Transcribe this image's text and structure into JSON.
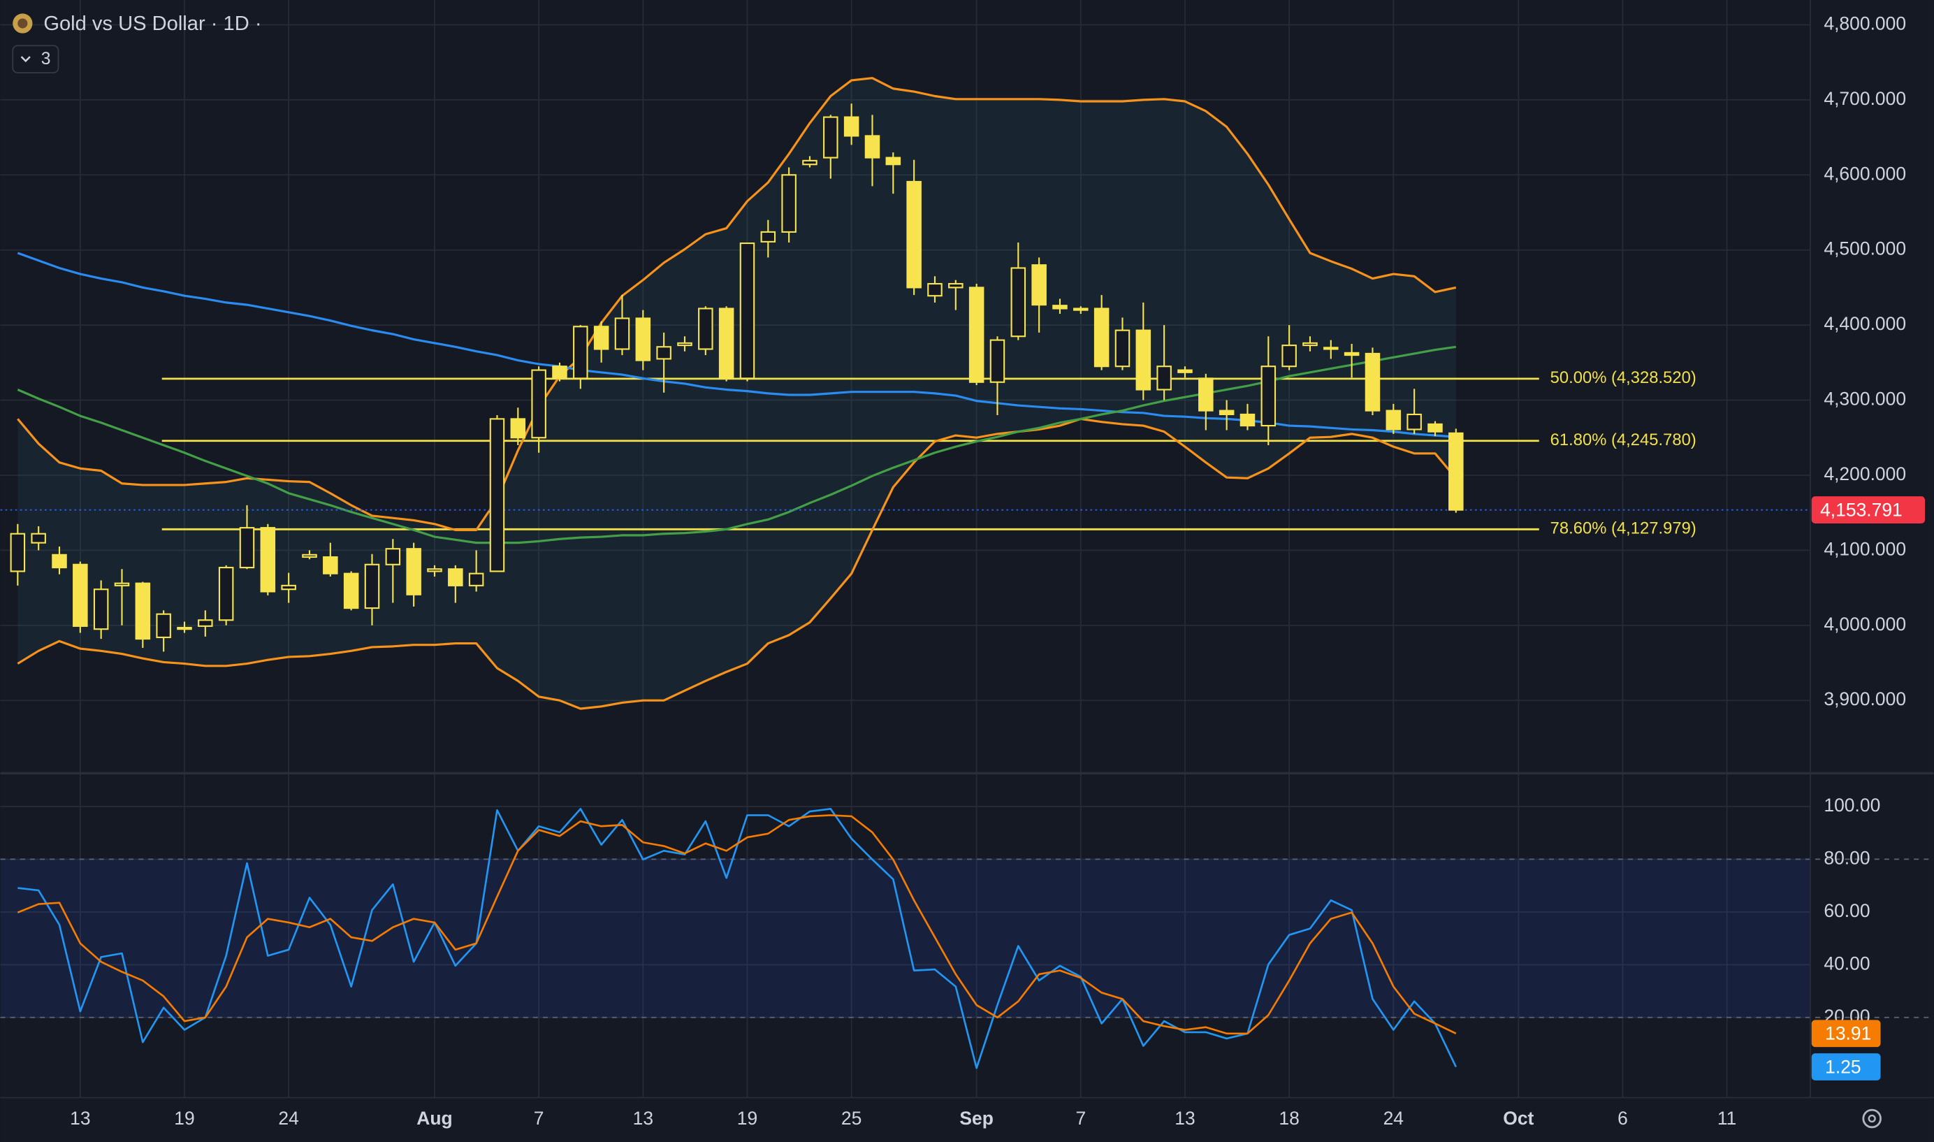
{
  "chart_data": [
    {
      "type": "candlestick",
      "title": "Gold vs US Dollar · 1D ·",
      "indicators": 3,
      "up_color": "#151924",
      "down_color": "#f7e34e",
      "wick_color": "#f7e34e",
      "grid": true,
      "band_color": "rgba(60,150,170,0.09)",
      "open": [
        4072,
        4110,
        4094,
        4081,
        3995,
        4053,
        4056,
        3984,
        3997,
        3999,
        4007,
        4077,
        4130,
        4048,
        4091,
        4091,
        4069,
        4023,
        4081,
        4102,
        4072,
        4075,
        4053,
        4072,
        4275,
        4250,
        4345,
        4329,
        4398,
        4368,
        4409,
        4355,
        4373,
        4368,
        4422,
        4329,
        4511,
        4524,
        4614,
        4623,
        4677,
        4652,
        4623,
        4591,
        4439,
        4450,
        4450,
        4324,
        4385,
        4480,
        4426,
        4422,
        4422,
        4345,
        4393,
        4314,
        4340,
        4329,
        4286,
        4281,
        4266,
        4345,
        4373,
        4370,
        4363,
        4362,
        4286,
        4261,
        4268,
        4256
      ],
      "high": [
        4135,
        4132,
        4105,
        4085,
        4060,
        4075,
        4058,
        4020,
        4005,
        4020,
        4080,
        4160,
        4135,
        4070,
        4100,
        4110,
        4072,
        4095,
        4115,
        4110,
        4080,
        4080,
        4100,
        4280,
        4290,
        4345,
        4350,
        4400,
        4405,
        4440,
        4420,
        4390,
        4385,
        4425,
        4425,
        4510,
        4540,
        4610,
        4625,
        4680,
        4695,
        4680,
        4630,
        4620,
        4465,
        4460,
        4455,
        4385,
        4510,
        4490,
        4435,
        4425,
        4440,
        4410,
        4430,
        4400,
        4345,
        4335,
        4300,
        4295,
        4385,
        4400,
        4385,
        4380,
        4375,
        4370,
        4295,
        4315,
        4272,
        4262
      ],
      "low": [
        4053,
        4100,
        4068,
        3990,
        3982,
        4000,
        3970,
        3965,
        3990,
        3985,
        4000,
        4075,
        4040,
        4030,
        4088,
        4065,
        4020,
        4000,
        4030,
        4025,
        4065,
        4030,
        4045,
        4072,
        4240,
        4230,
        4325,
        4315,
        4350,
        4360,
        4340,
        4310,
        4365,
        4360,
        4325,
        4325,
        4490,
        4510,
        4610,
        4595,
        4640,
        4585,
        4575,
        4440,
        4430,
        4420,
        4320,
        4280,
        4380,
        4390,
        4415,
        4415,
        4340,
        4340,
        4300,
        4300,
        4330,
        4260,
        4260,
        4260,
        4240,
        4340,
        4365,
        4355,
        4330,
        4280,
        4255,
        4255,
        4252,
        4150
      ],
      "close": [
        4122,
        4122,
        4077,
        3999,
        4048,
        4056,
        3982,
        4015,
        3995,
        4007,
        4077,
        4130,
        4045,
        4053,
        4094,
        4069,
        4023,
        4081,
        4102,
        4041,
        4075,
        4053,
        4069,
        4275,
        4250,
        4340,
        4329,
        4398,
        4368,
        4409,
        4353,
        4371,
        4376,
        4422,
        4329,
        4509,
        4524,
        4600,
        4619,
        4677,
        4652,
        4623,
        4614,
        4450,
        4455,
        4455,
        4324,
        4380,
        4476,
        4427,
        4422,
        4420,
        4345,
        4393,
        4314,
        4345,
        4337,
        4286,
        4281,
        4266,
        4345,
        4373,
        4376,
        4368,
        4360,
        4286,
        4261,
        4281,
        4258,
        4153.791
      ],
      "lines": [
        {
          "color": "#f7931a",
          "values": [
            4275,
            4242,
            4217,
            4209,
            4206,
            4189,
            4187,
            4187,
            4187,
            4189,
            4191,
            4196,
            4194,
            4192,
            4191,
            4176,
            4160,
            4146,
            4143,
            4140,
            4135,
            4127,
            4127,
            4168,
            4233,
            4291,
            4332,
            4357,
            4403,
            4439,
            4460,
            4483,
            4501,
            4521,
            4529,
            4565,
            4590,
            4628,
            4669,
            4705,
            4726,
            4729,
            4715,
            4711,
            4705,
            4701,
            4701,
            4701,
            4701,
            4701,
            4700,
            4698,
            4698,
            4698,
            4700,
            4701,
            4698,
            4685,
            4664,
            4628,
            4587,
            4541,
            4496,
            4485,
            4475,
            4462,
            4468,
            4465,
            4444,
            4450
          ]
        },
        {
          "color": "#f7931a",
          "values": [
            3949,
            3966,
            3979,
            3969,
            3966,
            3962,
            3956,
            3951,
            3949,
            3946,
            3946,
            3949,
            3954,
            3958,
            3959,
            3962,
            3966,
            3971,
            3972,
            3974,
            3974,
            3976,
            3976,
            3943,
            3926,
            3905,
            3900,
            3889,
            3892,
            3897,
            3900,
            3900,
            3913,
            3926,
            3938,
            3949,
            3976,
            3987,
            4004,
            4036,
            4069,
            4127,
            4184,
            4217,
            4245,
            4253,
            4250,
            4255,
            4258,
            4261,
            4266,
            4275,
            4271,
            4268,
            4266,
            4258,
            4238,
            4217,
            4197,
            4196,
            4209,
            4229,
            4250,
            4251,
            4255,
            4250,
            4238,
            4229,
            4229,
            4196
          ]
        },
        {
          "color": "#2a8cf0",
          "values": [
            4496,
            4486,
            4476,
            4468,
            4462,
            4457,
            4450,
            4445,
            4439,
            4435,
            4430,
            4427,
            4422,
            4417,
            4412,
            4406,
            4399,
            4393,
            4388,
            4381,
            4376,
            4371,
            4365,
            4360,
            4353,
            4348,
            4345,
            4340,
            4337,
            4334,
            4329,
            4325,
            4322,
            4317,
            4314,
            4312,
            4309,
            4307,
            4307,
            4309,
            4311,
            4311,
            4311,
            4311,
            4309,
            4306,
            4299,
            4296,
            4293,
            4291,
            4289,
            4288,
            4286,
            4284,
            4283,
            4279,
            4278,
            4276,
            4275,
            4273,
            4270,
            4266,
            4265,
            4263,
            4261,
            4260,
            4258,
            4255,
            4253,
            4251
          ]
        },
        {
          "color": "#43a047",
          "values": [
            4314,
            4302,
            4291,
            4279,
            4270,
            4260,
            4250,
            4240,
            4230,
            4219,
            4209,
            4199,
            4189,
            4176,
            4168,
            4160,
            4151,
            4143,
            4135,
            4127,
            4118,
            4114,
            4110,
            4110,
            4110,
            4112,
            4115,
            4117,
            4118,
            4120,
            4120,
            4122,
            4123,
            4125,
            4128,
            4135,
            4141,
            4151,
            4163,
            4174,
            4186,
            4199,
            4210,
            4220,
            4230,
            4238,
            4245,
            4251,
            4258,
            4263,
            4270,
            4275,
            4281,
            4286,
            4293,
            4299,
            4304,
            4309,
            4314,
            4319,
            4325,
            4332,
            4337,
            4342,
            4347,
            4352,
            4357,
            4362,
            4367,
            4371
          ]
        }
      ],
      "fib_color": "#f2e14a",
      "fib_levels": [
        {
          "value": 4328.52,
          "label": "50.00% (4,328.520)"
        },
        {
          "value": 4245.78,
          "label": "61.80% (4,245.780)"
        },
        {
          "value": 4127.979,
          "label": "78.60% (4,127.979)"
        }
      ],
      "last_price": {
        "value": 4153.791,
        "label": "4,153.791"
      },
      "last_price_color": "#f23645",
      "xlim": [
        -0.83,
        86.0
      ],
      "xticks": [
        {
          "value": 3,
          "label": "13"
        },
        {
          "value": 8,
          "label": "19"
        },
        {
          "value": 13,
          "label": "24"
        },
        {
          "value": 20,
          "label": "Aug"
        },
        {
          "value": 25,
          "label": "7"
        },
        {
          "value": 30,
          "label": "13"
        },
        {
          "value": 35,
          "label": "19"
        },
        {
          "value": 40,
          "label": "25"
        },
        {
          "value": 46,
          "label": "Sep"
        },
        {
          "value": 51,
          "label": "7"
        },
        {
          "value": 56,
          "label": "13"
        },
        {
          "value": 61,
          "label": "18"
        },
        {
          "value": 66,
          "label": "24"
        },
        {
          "value": 72,
          "label": "Oct"
        },
        {
          "value": 77,
          "label": "6"
        },
        {
          "value": 82,
          "label": "11"
        }
      ],
      "ylim": [
        3803,
        4833
      ],
      "yticks": [
        {
          "value": 3900,
          "label": "3,900.000"
        },
        {
          "value": 4000,
          "label": "4,000.000"
        },
        {
          "value": 4100,
          "label": "4,100.000"
        },
        {
          "value": 4200,
          "label": "4,200.000"
        },
        {
          "value": 4300,
          "label": "4,300.000"
        },
        {
          "value": 4400,
          "label": "4,400.000"
        },
        {
          "value": 4500,
          "label": "4,500.000"
        },
        {
          "value": 4600,
          "label": "4,600.000"
        },
        {
          "value": 4700,
          "label": "4,700.000"
        },
        {
          "value": 4800,
          "label": "4,800.000"
        }
      ]
    },
    {
      "type": "line",
      "grid": true,
      "series": [
        {
          "color": "#2196f3",
          "values": [
            69.1,
            68.2,
            55.1,
            22.3,
            42.9,
            44.3,
            10.6,
            23.7,
            15.3,
            20.0,
            43.4,
            78.5,
            43.4,
            45.7,
            65.4,
            55.1,
            31.7,
            60.7,
            70.5,
            41.1,
            56.0,
            39.6,
            48.1,
            98.6,
            83.2,
            92.5,
            90.2,
            99.1,
            85.5,
            94.9,
            79.9,
            83.2,
            81.8,
            94.4,
            72.9,
            96.7,
            96.7,
            92.5,
            98.1,
            99.1,
            87.8,
            79.9,
            72.4,
            37.8,
            38.2,
            31.7,
            0.8,
            24.7,
            47.1,
            34.0,
            39.6,
            35.4,
            17.7,
            27.0,
            9.2,
            18.6,
            14.4,
            14.4,
            12.0,
            13.9,
            40.1,
            51.3,
            53.7,
            64.4,
            60.7,
            27.0,
            15.3,
            26.1,
            17.7,
            1.25
          ]
        },
        {
          "color": "#f57c00",
          "values": [
            59.8,
            63.0,
            63.5,
            48.1,
            41.1,
            37.3,
            34.0,
            28.0,
            18.6,
            20.0,
            31.7,
            50.4,
            57.4,
            56.0,
            54.2,
            57.4,
            50.4,
            49.0,
            54.2,
            57.4,
            56.0,
            45.7,
            48.1,
            65.8,
            83.2,
            91.1,
            88.8,
            94.4,
            92.5,
            93.0,
            86.4,
            85.0,
            82.2,
            86.0,
            83.2,
            88.3,
            89.7,
            94.9,
            96.3,
            96.7,
            96.3,
            90.2,
            79.9,
            64.4,
            50.4,
            36.4,
            24.7,
            20.0,
            26.1,
            36.4,
            37.8,
            35.0,
            29.4,
            27.0,
            18.6,
            16.7,
            15.3,
            16.3,
            13.9,
            13.9,
            20.9,
            34.0,
            48.1,
            57.4,
            59.8,
            48.1,
            31.7,
            21.4,
            17.7,
            13.91
          ]
        }
      ],
      "levels": [
        20,
        80
      ],
      "level_color": "rgba(41,98,255,0.12)",
      "ylim": [
        -10.4,
        112.6
      ],
      "yticks": [
        {
          "value": 20,
          "label": "20.00"
        },
        {
          "value": 40,
          "label": "40.00"
        },
        {
          "value": 60,
          "label": "60.00"
        },
        {
          "value": 80,
          "label": "80.00"
        },
        {
          "value": 100,
          "label": "100.00"
        }
      ]
    }
  ]
}
